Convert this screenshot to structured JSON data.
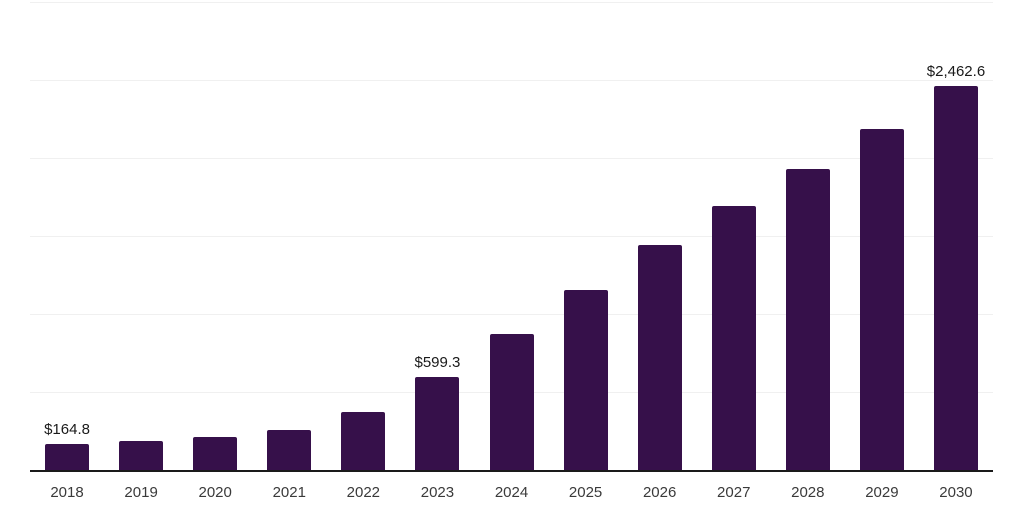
{
  "chart_data": {
    "type": "bar",
    "title": "",
    "xlabel": "",
    "ylabel": "",
    "categories": [
      "2018",
      "2019",
      "2020",
      "2021",
      "2022",
      "2023",
      "2024",
      "2025",
      "2026",
      "2027",
      "2028",
      "2029",
      "2030"
    ],
    "values": [
      164.8,
      189,
      213,
      254,
      369,
      599.3,
      872,
      1154,
      1441,
      1691,
      1929,
      2183,
      2462.6
    ],
    "value_labels": [
      "$164.8",
      "",
      "",
      "",
      "",
      "$599.3",
      "",
      "",
      "",
      "",
      "",
      "",
      "$2,462.6"
    ],
    "ylim": [
      0,
      3000
    ],
    "gridline_step": 500,
    "grid": true,
    "legend": false
  },
  "styles": {
    "background": "#ffffff",
    "bar_color": "#36104a",
    "grid_color": "#f0f0f0",
    "axis_color": "#1a1a1a",
    "value_label_color": "#1a1a1a",
    "tick_label_color": "#3a3a3a"
  }
}
